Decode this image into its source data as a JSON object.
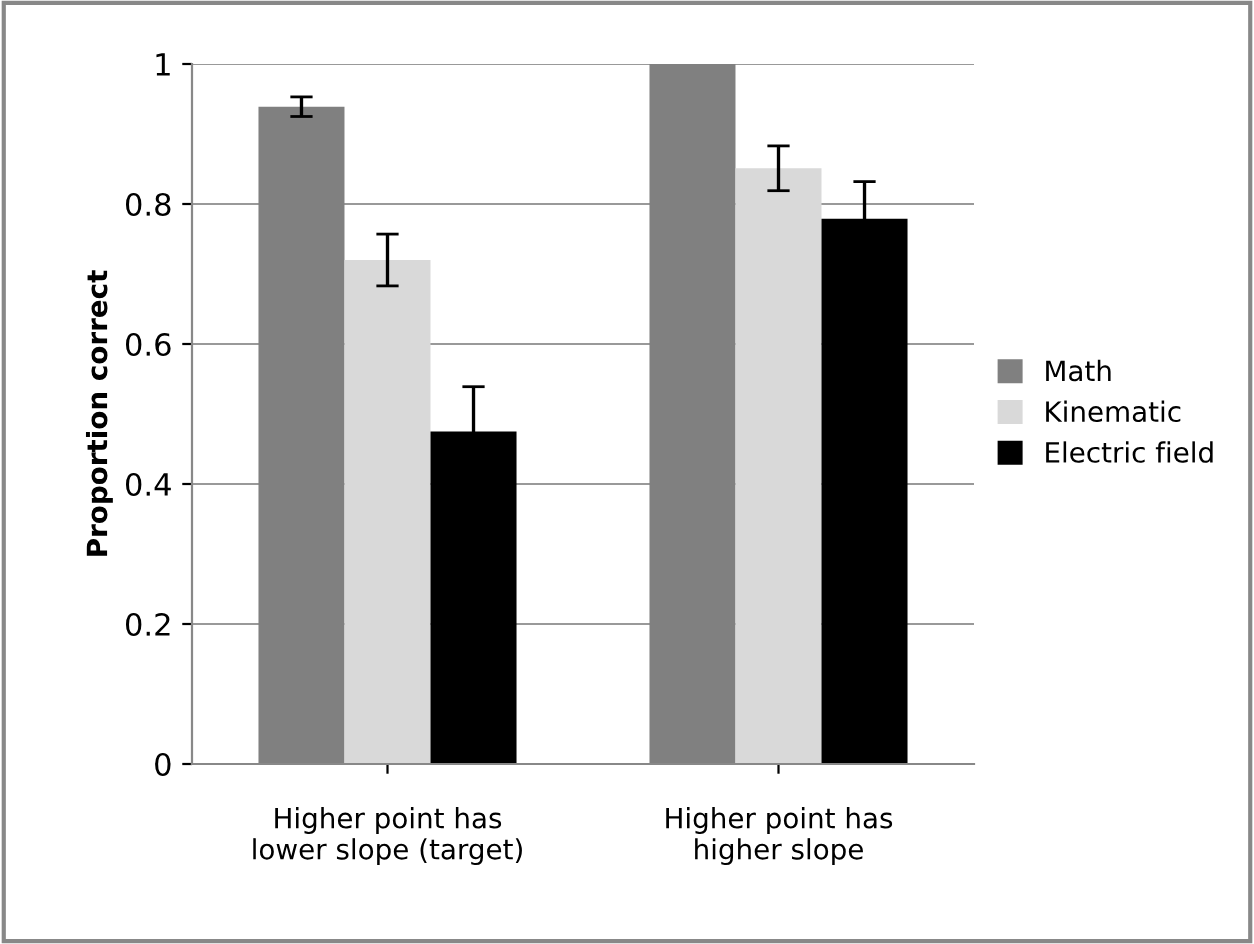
{
  "chart_data": {
    "type": "bar",
    "ylabel": "Proportion correct",
    "categories": [
      "Higher point has\nlower slope (target)",
      "Higher point has\nhigher slope"
    ],
    "series": [
      {
        "name": "Math",
        "color": "#808080",
        "values": [
          0.939,
          1.0
        ],
        "errors": [
          0.014,
          null
        ]
      },
      {
        "name": "Kinematic",
        "color": "#d9d9d9",
        "values": [
          0.72,
          0.851
        ],
        "errors": [
          0.037,
          0.032
        ]
      },
      {
        "name": "Electric field",
        "color": "#000000",
        "values": [
          0.475,
          0.779
        ],
        "errors": [
          0.064,
          0.053
        ]
      }
    ],
    "ylim": [
      0,
      1
    ],
    "yticks": [
      0,
      0.2,
      0.4,
      0.6,
      0.8,
      1
    ],
    "grid": "y",
    "legend": "right"
  }
}
